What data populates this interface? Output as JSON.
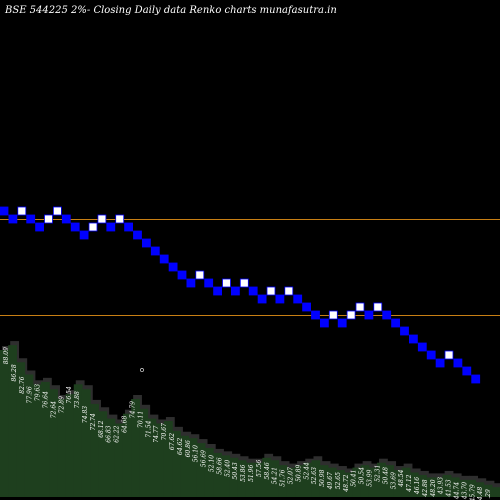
{
  "title": "BSE 544225 2%-  Closing Daily data  Renko  charts munafasutra.in",
  "chart_data": {
    "type": "renko",
    "box_size_pct": 2,
    "background": "#000000",
    "colors": {
      "up_brick": "#ffffff",
      "down_brick": "#0000ff",
      "brick_border": "#0000ff",
      "volume_fill": "#1e3f1e",
      "volume_shadow": "#2e2e2e",
      "support_line": "#c87f14"
    },
    "bricks": [
      {
        "dir": "down",
        "level": 0
      },
      {
        "dir": "down",
        "level": -1
      },
      {
        "dir": "up",
        "level": 0
      },
      {
        "dir": "down",
        "level": -1
      },
      {
        "dir": "down",
        "level": -2
      },
      {
        "dir": "up",
        "level": -1
      },
      {
        "dir": "up",
        "level": 0
      },
      {
        "dir": "down",
        "level": -1
      },
      {
        "dir": "down",
        "level": -2
      },
      {
        "dir": "down",
        "level": -3
      },
      {
        "dir": "up",
        "level": -2
      },
      {
        "dir": "up",
        "level": -1
      },
      {
        "dir": "down",
        "level": -2
      },
      {
        "dir": "up",
        "level": -1
      },
      {
        "dir": "down",
        "level": -2
      },
      {
        "dir": "down",
        "level": -3
      },
      {
        "dir": "down",
        "level": -4
      },
      {
        "dir": "down",
        "level": -5
      },
      {
        "dir": "down",
        "level": -6
      },
      {
        "dir": "down",
        "level": -7
      },
      {
        "dir": "down",
        "level": -8
      },
      {
        "dir": "down",
        "level": -9
      },
      {
        "dir": "up",
        "level": -8
      },
      {
        "dir": "down",
        "level": -9
      },
      {
        "dir": "down",
        "level": -10
      },
      {
        "dir": "up",
        "level": -9
      },
      {
        "dir": "down",
        "level": -10
      },
      {
        "dir": "up",
        "level": -9
      },
      {
        "dir": "down",
        "level": -10
      },
      {
        "dir": "down",
        "level": -11
      },
      {
        "dir": "up",
        "level": -10
      },
      {
        "dir": "down",
        "level": -11
      },
      {
        "dir": "up",
        "level": -10
      },
      {
        "dir": "down",
        "level": -11
      },
      {
        "dir": "down",
        "level": -12
      },
      {
        "dir": "down",
        "level": -13
      },
      {
        "dir": "down",
        "level": -14
      },
      {
        "dir": "up",
        "level": -13
      },
      {
        "dir": "down",
        "level": -14
      },
      {
        "dir": "up",
        "level": -13
      },
      {
        "dir": "up",
        "level": -12
      },
      {
        "dir": "down",
        "level": -13
      },
      {
        "dir": "up",
        "level": -12
      },
      {
        "dir": "down",
        "level": -13
      },
      {
        "dir": "down",
        "level": -14
      },
      {
        "dir": "down",
        "level": -15
      },
      {
        "dir": "down",
        "level": -16
      },
      {
        "dir": "down",
        "level": -17
      },
      {
        "dir": "down",
        "level": -18
      },
      {
        "dir": "down",
        "level": -19
      },
      {
        "dir": "up",
        "level": -18
      },
      {
        "dir": "down",
        "level": -19
      },
      {
        "dir": "down",
        "level": -20
      },
      {
        "dir": "down",
        "level": -21
      }
    ],
    "support_lines": [
      {
        "level": -1.5
      },
      {
        "level": -13.5
      }
    ],
    "price_labels": [
      "88.09",
      "86.28",
      "82.76",
      "77.96",
      "79.63",
      "76.64",
      "72.64",
      "72.89",
      "76.54",
      "73.88",
      "74.83",
      "72.74",
      "68.12",
      "66.83",
      "62.22",
      "64.68",
      "74.79",
      "70.11",
      "71.54",
      "74.77",
      "70.67",
      "67.62",
      "64.62",
      "60.86",
      "56.10",
      "56.69",
      "52.10",
      "58.66",
      "52.40",
      "50.43",
      "53.86",
      "51.96",
      "57.56",
      "58.46",
      "54.21",
      "51.76",
      "52.07",
      "50.89",
      "52.44",
      "52.63",
      "50.98",
      "49.67",
      "52.65",
      "48.72",
      "50.41",
      "50.54",
      "53.99",
      "52.31",
      "50.48",
      "53.69",
      "48.54",
      "47.12",
      "46.16",
      "42.88",
      "48.20",
      "43.93",
      "41.53",
      "44.74",
      "43.70",
      "45.79",
      "44.48",
      "41.29"
    ],
    "volume": [
      0.6,
      0.62,
      0.55,
      0.5,
      0.46,
      0.47,
      0.44,
      0.4,
      0.42,
      0.46,
      0.44,
      0.38,
      0.35,
      0.32,
      0.3,
      0.34,
      0.4,
      0.36,
      0.32,
      0.3,
      0.31,
      0.27,
      0.25,
      0.24,
      0.22,
      0.2,
      0.18,
      0.17,
      0.16,
      0.15,
      0.14,
      0.14,
      0.16,
      0.15,
      0.13,
      0.12,
      0.13,
      0.14,
      0.15,
      0.13,
      0.12,
      0.11,
      0.1,
      0.12,
      0.13,
      0.12,
      0.14,
      0.13,
      0.11,
      0.12,
      0.1,
      0.09,
      0.08,
      0.08,
      0.09,
      0.08,
      0.07,
      0.07,
      0.06,
      0.05,
      0.04,
      0.03
    ]
  }
}
